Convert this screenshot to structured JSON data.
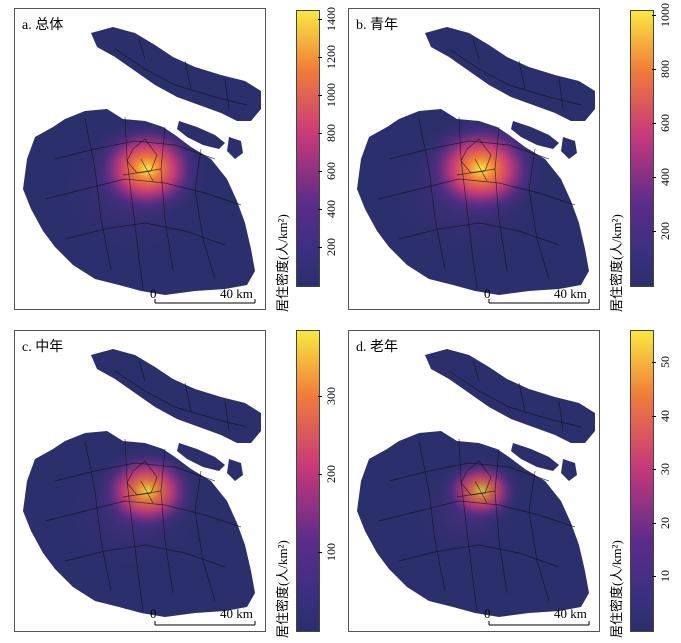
{
  "panels": [
    {
      "label": "a. 总体",
      "ticks": [
        "200",
        "400",
        "600",
        "800",
        "1000",
        "1200",
        "1400"
      ],
      "tick_values": [
        200,
        400,
        600,
        800,
        1000,
        1200,
        1400
      ],
      "max": 1450,
      "hot": 1.0,
      "spread": 1.0
    },
    {
      "label": "b. 青年",
      "ticks": [
        "200",
        "400",
        "600",
        "800",
        "1000"
      ],
      "tick_values": [
        200,
        400,
        600,
        800,
        1000
      ],
      "max": 1020,
      "hot": 1.0,
      "spread": 1.05
    },
    {
      "label": "c. 中年",
      "ticks": [
        "100",
        "200",
        "300"
      ],
      "tick_values": [
        100,
        200,
        300
      ],
      "max": 385,
      "hot": 0.9,
      "spread": 0.9
    },
    {
      "label": "d. 老年",
      "ticks": [
        "10",
        "20",
        "30",
        "40",
        "50"
      ],
      "tick_values": [
        10,
        20,
        30,
        40,
        50
      ],
      "max": 56,
      "hot": 0.8,
      "spread": 0.7
    }
  ],
  "colorbar_title": "居住密度(人/km²)",
  "scale": {
    "zero": "0",
    "dist": "40 km"
  },
  "colors": {
    "low": "#2b2f6b",
    "mid1": "#5b2c8a",
    "mid2": "#c83a7a",
    "mid3": "#f07a3a",
    "high": "#f9e840"
  }
}
